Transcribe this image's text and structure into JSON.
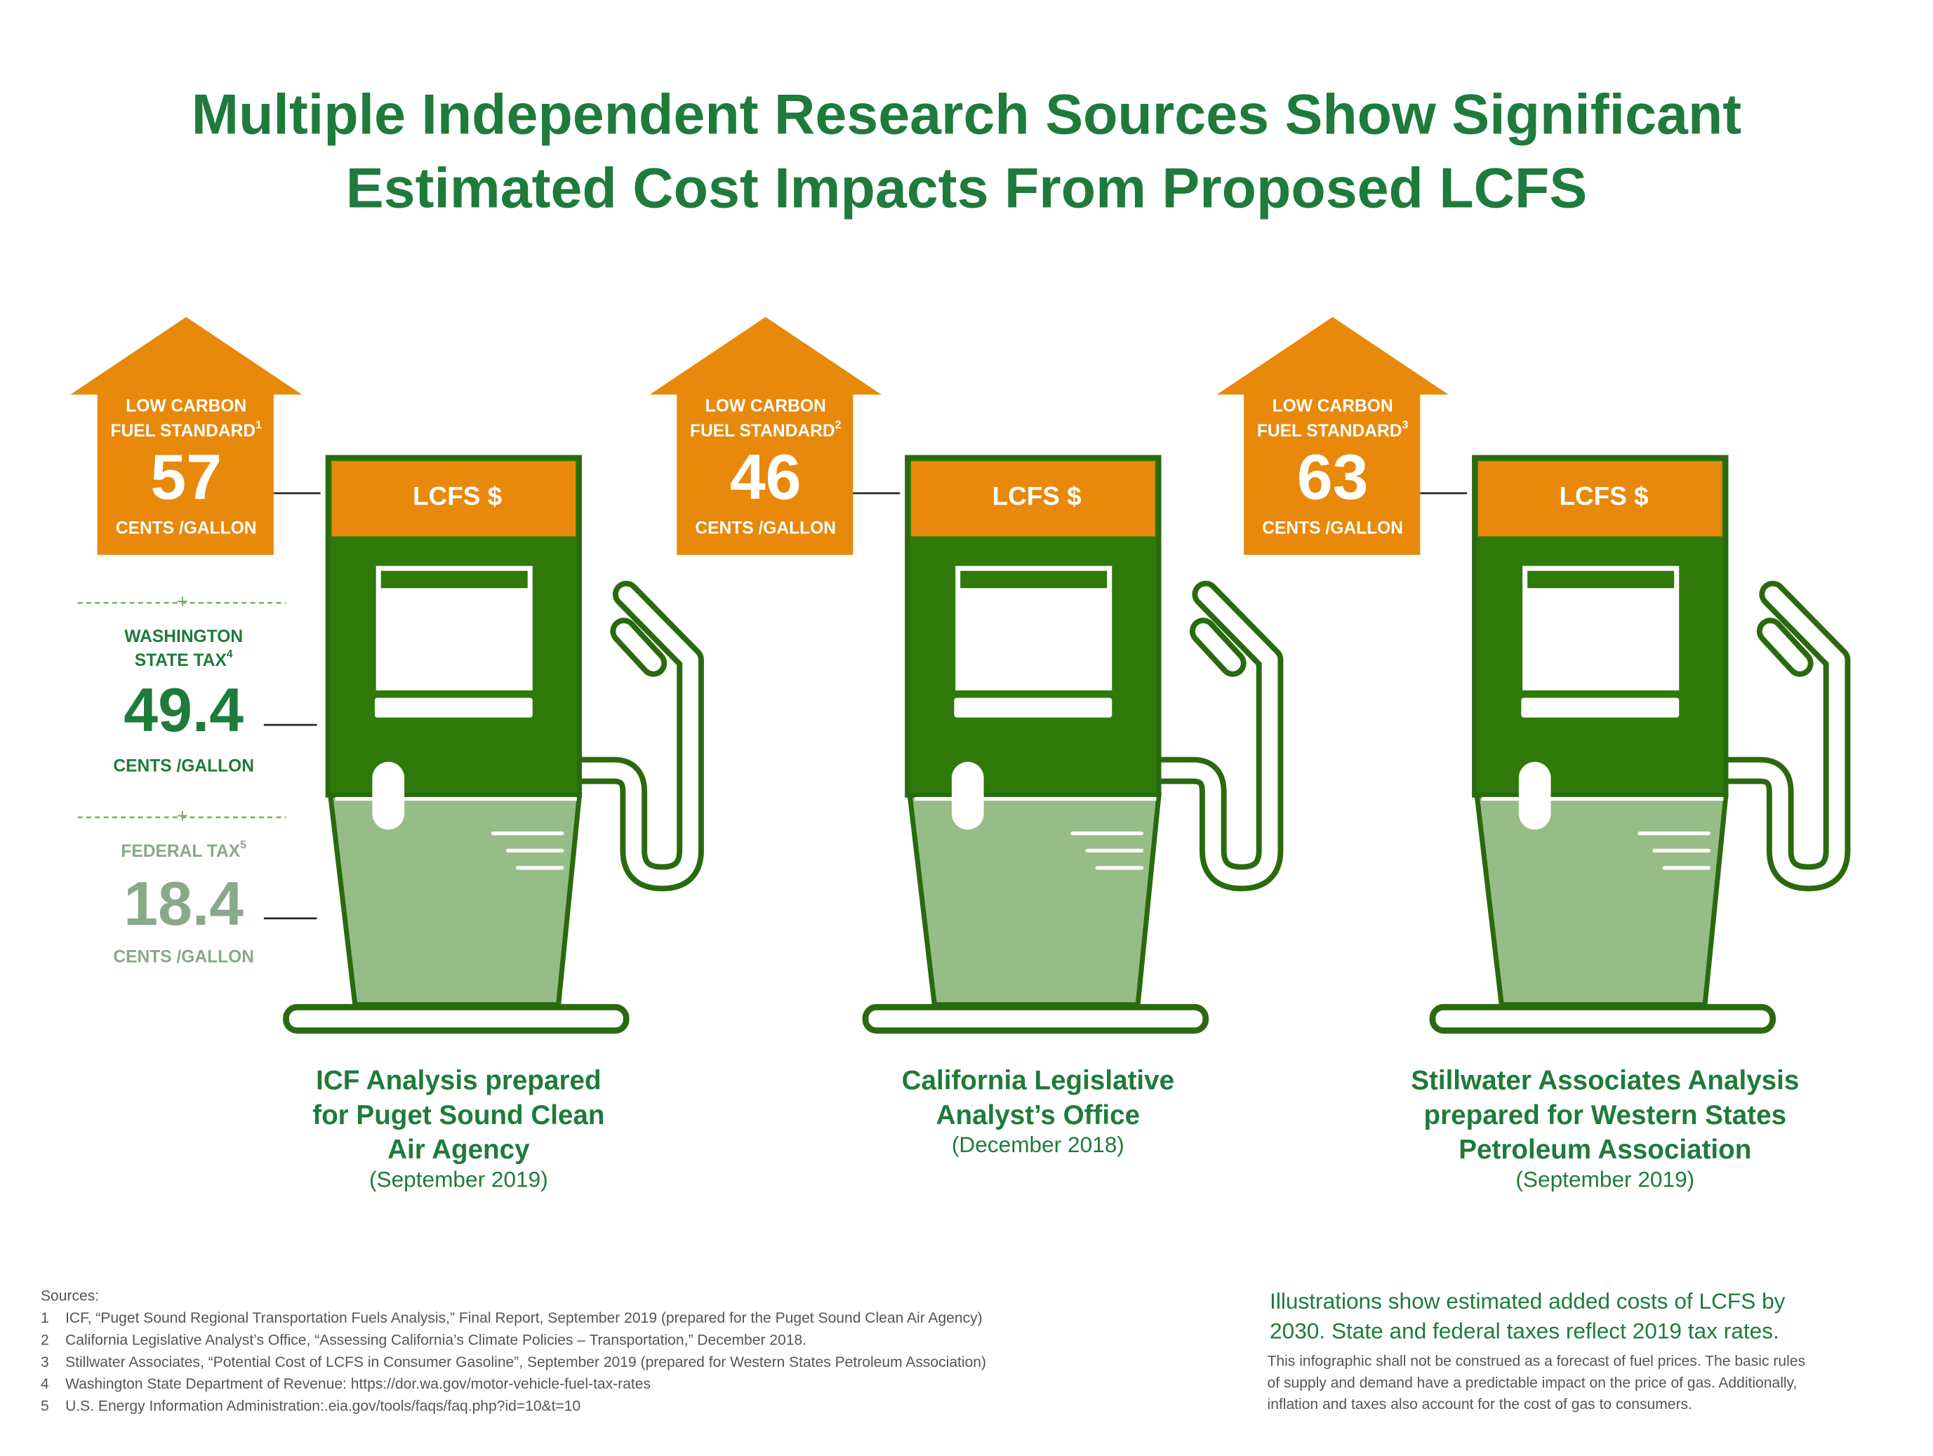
{
  "title": [
    "Multiple Independent Research Sources Show Significant",
    "Estimated Cost Impacts From Proposed LCFS"
  ],
  "pumps": [
    {
      "label_lines": [
        "LOW CARBON",
        "FUEL STANDARD"
      ],
      "note": "1",
      "value": "57",
      "unit": "CENTS /GALLON",
      "pump_label": "LCFS $",
      "source_lines": [
        "ICF Analysis prepared",
        "for Puget Sound Clean",
        "Air Agency"
      ],
      "date": "(September 2019)"
    },
    {
      "label_lines": [
        "LOW CARBON",
        "FUEL STANDARD"
      ],
      "note": "2",
      "value": "46",
      "unit": "CENTS /GALLON",
      "pump_label": "LCFS $",
      "source_lines": [
        "California Legislative",
        "Analyst’s Office"
      ],
      "date": "(December 2018)"
    },
    {
      "label_lines": [
        "LOW CARBON",
        "FUEL STANDARD"
      ],
      "note": "3",
      "value": "63",
      "unit": "CENTS /GALLON",
      "pump_label": "LCFS $",
      "source_lines": [
        "Stillwater Associates Analysis",
        "prepared for Western States",
        "Petroleum Association"
      ],
      "date": "(September 2019)"
    }
  ],
  "taxes": [
    {
      "label_lines": [
        "WASHINGTON",
        "STATE TAX"
      ],
      "note": "4",
      "value": "49.4",
      "unit": "CENTS /GALLON"
    },
    {
      "label_lines": [
        "FEDERAL TAX"
      ],
      "note": "5",
      "value": "18.4",
      "unit": "CENTS /GALLON"
    }
  ],
  "sources": {
    "heading": "Sources:",
    "items": [
      {
        "n": "1",
        "text": "ICF, “Puget Sound Regional Transportation Fuels Analysis,” Final Report, September 2019 (prepared for the Puget Sound Clean Air Agency)"
      },
      {
        "n": "2",
        "text": "California Legislative Analyst’s Office, “Assessing California’s Climate Policies – Transportation,” December 2018."
      },
      {
        "n": "3",
        "text": "Stillwater Associates, “Potential Cost of LCFS in Consumer Gasoline”, September 2019 (prepared for Western States Petroleum Association)"
      },
      {
        "n": "4",
        "text": "Washington State Department of Revenue: https://dor.wa.gov/motor-vehicle-fuel-tax-rates"
      },
      {
        "n": "5",
        "text": "U.S. Energy Information Administration:.eia.gov/tools/faqs/faq.php?id=10&t=10"
      }
    ]
  },
  "notes": {
    "main_lines": [
      "Illustrations show estimated added costs of LCFS by",
      "2030. State and federal taxes reflect 2019 tax rates."
    ],
    "disclaimer_lines": [
      "This infographic shall not be construed as a forecast of fuel prices. The basic rules",
      "of supply and demand have a predictable impact on the price of gas. Additionally,",
      "inflation and taxes also account for the cost of gas to consumers."
    ]
  }
}
